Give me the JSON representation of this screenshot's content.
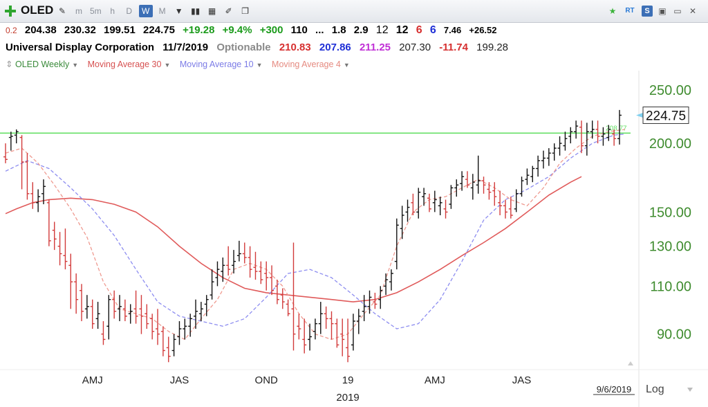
{
  "toolbar": {
    "symbol": "OLED",
    "buttons": [
      "m",
      "5m",
      "h",
      "D",
      "W",
      "M"
    ],
    "active_period": "W",
    "right_rt": "RT",
    "right_s": "S"
  },
  "quote": {
    "prefix": "0.2",
    "open": "204.38",
    "high": "230.32",
    "low": "199.51",
    "close": "224.75",
    "change": "+19.28",
    "change_pct": "+9.4%",
    "v1": "+300",
    "v2": "110",
    "v3": "...",
    "v4": "1.8",
    "v5": "2.9",
    "v6": "12",
    "v7": "12",
    "v8": "6",
    "v9": "6",
    "v10": "7.46",
    "v11": "+26.52"
  },
  "info": {
    "name": "Universal Display Corporation",
    "date": "11/7/2019",
    "optionable": "Optionable",
    "p1": "210.83",
    "p2": "207.86",
    "p3": "211.25",
    "p4": "207.30",
    "p5": "-11.74",
    "p6": "199.28"
  },
  "legend": {
    "main": "OLED Weekly",
    "ma30": "Moving Average 30",
    "ma10": "Moving Average 10",
    "ma4": "Moving Average 4"
  },
  "colors": {
    "up_bar": "#111111",
    "down_bar": "#d23a3a",
    "ma30": "#e05a5a",
    "ma10": "#8c8cf0",
    "ma4": "#ef9a90",
    "hline": "#66e066",
    "axis_text": "#3f8c2f"
  },
  "chart_data": {
    "type": "ohlc",
    "title": "",
    "y_scale": "log",
    "y_range": [
      78,
      265
    ],
    "y_ticks": [
      90,
      110,
      130,
      150,
      200,
      250
    ],
    "y_tick_labels": [
      "90.00",
      "110.00",
      "130.00",
      "150.00",
      "200.00",
      "250.00"
    ],
    "last_price_label": "224.75",
    "hline_value": 208.77,
    "hline_label": "208.77",
    "x_tick_labels": [
      "AMJ",
      "JAS",
      "OND",
      "19",
      "AMJ",
      "JAS"
    ],
    "x_tick_week_index": [
      16,
      32,
      48,
      63,
      79,
      95
    ],
    "year_label": "2019",
    "date_label": "9/6/2019",
    "scale_mode": "Log",
    "bars": [
      [
        189,
        200,
        184,
        187
      ],
      [
        205,
        210,
        194,
        206
      ],
      [
        207,
        212,
        200,
        210
      ],
      [
        205,
        207,
        165,
        185
      ],
      [
        185,
        192,
        158,
        162
      ],
      [
        162,
        170,
        152,
        156
      ],
      [
        156,
        165,
        150,
        160
      ],
      [
        162,
        172,
        155,
        167
      ],
      [
        156,
        158,
        130,
        133
      ],
      [
        139,
        144,
        128,
        134
      ],
      [
        130,
        138,
        120,
        126
      ],
      [
        125,
        140,
        118,
        122
      ],
      [
        120,
        126,
        100,
        112
      ],
      [
        112,
        116,
        98,
        104
      ],
      [
        108,
        111,
        95,
        99
      ],
      [
        100,
        106,
        96,
        101
      ],
      [
        101,
        104,
        92,
        94
      ],
      [
        96,
        103,
        92,
        98
      ],
      [
        90,
        95,
        86,
        88
      ],
      [
        93,
        106,
        88,
        104
      ],
      [
        104,
        108,
        96,
        99
      ],
      [
        100,
        106,
        95,
        101
      ],
      [
        100,
        104,
        95,
        97
      ],
      [
        98,
        102,
        94,
        99
      ],
      [
        100,
        108,
        94,
        97
      ],
      [
        100,
        106,
        90,
        97
      ],
      [
        98,
        102,
        92,
        94
      ],
      [
        96,
        98,
        88,
        91
      ],
      [
        92,
        100,
        86,
        90
      ],
      [
        91,
        93,
        82,
        84
      ],
      [
        85,
        89,
        80,
        82
      ],
      [
        84,
        90,
        82,
        88
      ],
      [
        89,
        95,
        86,
        92
      ],
      [
        92,
        96,
        88,
        93
      ],
      [
        93,
        98,
        89,
        96
      ],
      [
        97,
        104,
        92,
        99
      ],
      [
        98,
        103,
        95,
        100
      ],
      [
        102,
        106,
        97,
        104
      ],
      [
        106,
        118,
        104,
        112
      ],
      [
        114,
        122,
        110,
        118
      ],
      [
        117,
        124,
        112,
        120
      ],
      [
        120,
        130,
        115,
        118
      ],
      [
        120,
        128,
        116,
        122
      ],
      [
        125,
        133,
        122,
        126
      ],
      [
        126,
        132,
        121,
        124
      ],
      [
        124,
        130,
        114,
        118
      ],
      [
        119,
        127,
        113,
        117
      ],
      [
        117,
        122,
        111,
        113
      ],
      [
        116,
        122,
        108,
        114
      ],
      [
        114,
        120,
        106,
        108
      ],
      [
        110,
        113,
        102,
        104
      ],
      [
        106,
        109,
        100,
        103
      ],
      [
        102,
        104,
        97,
        98
      ],
      [
        100,
        132,
        84,
        90
      ],
      [
        93,
        98,
        88,
        92
      ],
      [
        88,
        96,
        83,
        86
      ],
      [
        88,
        94,
        84,
        89
      ],
      [
        91,
        96,
        88,
        94
      ],
      [
        94,
        103,
        90,
        98
      ],
      [
        98,
        101,
        92,
        96
      ],
      [
        96,
        99,
        88,
        94
      ],
      [
        94,
        96,
        85,
        86
      ],
      [
        90,
        96,
        82,
        88
      ],
      [
        85,
        96,
        80,
        82
      ],
      [
        86,
        98,
        84,
        95
      ],
      [
        95,
        100,
        90,
        97
      ],
      [
        99,
        106,
        95,
        101
      ],
      [
        101,
        108,
        98,
        105
      ],
      [
        103,
        107,
        100,
        102
      ],
      [
        104,
        110,
        100,
        108
      ],
      [
        110,
        116,
        106,
        113
      ],
      [
        112,
        118,
        108,
        116
      ],
      [
        122,
        146,
        118,
        142
      ],
      [
        140,
        154,
        134,
        148
      ],
      [
        150,
        158,
        144,
        153
      ],
      [
        156,
        162,
        148,
        150
      ],
      [
        150,
        166,
        146,
        163
      ],
      [
        160,
        166,
        154,
        162
      ],
      [
        159,
        162,
        150,
        152
      ],
      [
        156,
        164,
        150,
        158
      ],
      [
        154,
        160,
        148,
        156
      ],
      [
        152,
        158,
        146,
        150
      ],
      [
        155,
        168,
        152,
        166
      ],
      [
        166,
        172,
        160,
        168
      ],
      [
        169,
        178,
        164,
        174
      ],
      [
        172,
        178,
        166,
        168
      ],
      [
        166,
        176,
        158,
        170
      ],
      [
        168,
        190,
        162,
        171
      ],
      [
        171,
        174,
        162,
        168
      ],
      [
        165,
        170,
        158,
        163
      ],
      [
        164,
        170,
        154,
        160
      ],
      [
        156,
        164,
        148,
        154
      ],
      [
        154,
        158,
        146,
        150
      ],
      [
        152,
        160,
        146,
        148
      ],
      [
        152,
        165,
        150,
        162
      ],
      [
        162,
        174,
        160,
        171
      ],
      [
        172,
        180,
        168,
        175
      ],
      [
        174,
        182,
        170,
        180
      ],
      [
        180,
        190,
        174,
        186
      ],
      [
        186,
        194,
        180,
        188
      ],
      [
        188,
        196,
        182,
        192
      ],
      [
        192,
        200,
        186,
        196
      ],
      [
        196,
        206,
        190,
        200
      ],
      [
        198,
        210,
        194,
        204
      ],
      [
        206,
        214,
        200,
        210
      ],
      [
        210,
        220,
        204,
        215
      ],
      [
        214,
        220,
        192,
        198
      ],
      [
        198,
        218,
        190,
        210
      ],
      [
        210,
        220,
        204,
        212
      ],
      [
        212,
        220,
        200,
        206
      ],
      [
        206,
        214,
        198,
        208
      ],
      [
        205,
        216,
        202,
        212
      ],
      [
        208,
        212,
        198,
        204
      ],
      [
        204,
        230,
        199,
        225
      ]
    ],
    "ma30": [
      [
        0,
        149
      ],
      [
        2,
        152
      ],
      [
        5,
        156
      ],
      [
        8,
        158
      ],
      [
        12,
        159
      ],
      [
        16,
        158
      ],
      [
        20,
        155
      ],
      [
        24,
        150
      ],
      [
        28,
        141
      ],
      [
        32,
        130
      ],
      [
        36,
        121
      ],
      [
        40,
        114
      ],
      [
        44,
        109
      ],
      [
        48,
        107
      ],
      [
        52,
        106
      ],
      [
        56,
        105
      ],
      [
        60,
        104
      ],
      [
        64,
        103
      ],
      [
        68,
        104
      ],
      [
        72,
        107
      ],
      [
        76,
        112
      ],
      [
        80,
        118
      ],
      [
        84,
        125
      ],
      [
        88,
        132
      ],
      [
        92,
        140
      ],
      [
        96,
        150
      ],
      [
        100,
        161
      ],
      [
        104,
        170
      ],
      [
        106,
        174
      ]
    ],
    "ma10": [
      [
        0,
        178
      ],
      [
        4,
        186
      ],
      [
        8,
        180
      ],
      [
        12,
        166
      ],
      [
        16,
        152
      ],
      [
        20,
        136
      ],
      [
        24,
        118
      ],
      [
        28,
        103
      ],
      [
        32,
        97
      ],
      [
        36,
        95
      ],
      [
        40,
        93
      ],
      [
        44,
        96
      ],
      [
        48,
        105
      ],
      [
        52,
        116
      ],
      [
        56,
        118
      ],
      [
        60,
        114
      ],
      [
        64,
        106
      ],
      [
        68,
        98
      ],
      [
        72,
        92
      ],
      [
        76,
        94
      ],
      [
        80,
        104
      ],
      [
        84,
        122
      ],
      [
        88,
        145
      ],
      [
        92,
        158
      ],
      [
        96,
        165
      ],
      [
        100,
        174
      ],
      [
        104,
        188
      ],
      [
        108,
        200
      ],
      [
        112,
        207
      ],
      [
        114,
        208
      ]
    ],
    "ma4": [
      [
        0,
        192
      ],
      [
        3,
        196
      ],
      [
        6,
        184
      ],
      [
        9,
        168
      ],
      [
        12,
        152
      ],
      [
        15,
        135
      ],
      [
        18,
        112
      ],
      [
        21,
        100
      ],
      [
        24,
        98
      ],
      [
        27,
        96
      ],
      [
        30,
        91
      ],
      [
        33,
        88
      ],
      [
        36,
        96
      ],
      [
        39,
        104
      ],
      [
        42,
        118
      ],
      [
        45,
        121
      ],
      [
        48,
        118
      ],
      [
        51,
        110
      ],
      [
        54,
        98
      ],
      [
        57,
        90
      ],
      [
        60,
        88
      ],
      [
        63,
        90
      ],
      [
        66,
        98
      ],
      [
        69,
        106
      ],
      [
        72,
        130
      ],
      [
        75,
        150
      ],
      [
        78,
        158
      ],
      [
        81,
        160
      ],
      [
        84,
        166
      ],
      [
        87,
        172
      ],
      [
        90,
        166
      ],
      [
        93,
        158
      ],
      [
        96,
        154
      ],
      [
        99,
        166
      ],
      [
        102,
        184
      ],
      [
        105,
        196
      ],
      [
        108,
        206
      ],
      [
        111,
        210
      ],
      [
        114,
        212
      ]
    ]
  }
}
